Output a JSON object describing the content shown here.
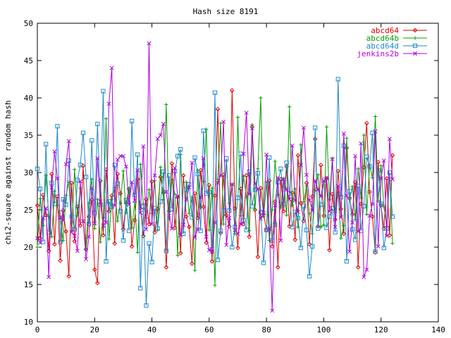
{
  "chart_data": {
    "type": "line",
    "title": "Hash size 8191",
    "xlabel": "",
    "ylabel": "chi2-square against random hash",
    "xlim": [
      0,
      140
    ],
    "ylim": [
      10,
      50
    ],
    "xticks": [
      0,
      20,
      40,
      60,
      80,
      100,
      120,
      140
    ],
    "yticks": [
      10,
      15,
      20,
      25,
      30,
      35,
      40,
      45,
      50
    ],
    "grid": false,
    "legend_position": "top-right",
    "x": [
      0,
      1,
      2,
      3,
      4,
      5,
      6,
      7,
      8,
      9,
      10,
      11,
      12,
      13,
      14,
      15,
      16,
      17,
      18,
      19,
      20,
      21,
      22,
      23,
      24,
      25,
      26,
      27,
      28,
      29,
      30,
      31,
      32,
      33,
      34,
      35,
      36,
      37,
      38,
      39,
      40,
      41,
      42,
      43,
      44,
      45,
      46,
      47,
      48,
      49,
      50,
      51,
      52,
      53,
      54,
      55,
      56,
      57,
      58,
      59,
      60,
      61,
      62,
      63,
      64,
      65,
      66,
      67,
      68,
      69,
      70,
      71,
      72,
      73,
      74,
      75,
      76,
      77,
      78,
      79,
      80,
      81,
      82,
      83,
      84,
      85,
      86,
      87,
      88,
      89,
      90,
      91,
      92,
      93,
      94,
      95,
      96,
      97,
      98,
      99,
      100,
      101,
      102,
      103,
      104,
      105,
      106,
      107,
      108,
      109,
      110,
      111,
      112,
      113,
      114,
      115,
      116,
      117,
      118,
      119,
      120,
      121,
      122,
      123,
      124
    ],
    "series": [
      {
        "name": "abcd64",
        "color": "#e00000",
        "marker": "diamond",
        "values": [
          25.6,
          21.2,
          27.0,
          24.3,
          19.5,
          29.8,
          20.4,
          26.8,
          18.2,
          24.9,
          22.1,
          16.1,
          28.6,
          20.8,
          25.4,
          22.9,
          30.9,
          19.7,
          24.1,
          26.3,
          17.0,
          15.2,
          28.9,
          21.6,
          30.4,
          24.8,
          26.9,
          20.5,
          29.8,
          27.2,
          22.4,
          25.9,
          27.8,
          20.1,
          23.6,
          29.1,
          25.2,
          21.5,
          26.4,
          23.1,
          28.8,
          22.0,
          25.1,
          29.4,
          27.3,
          17.3,
          24.8,
          31.2,
          22.6,
          26.7,
          19.2,
          29.6,
          24.1,
          22.7,
          17.8,
          27.2,
          23.9,
          30.3,
          25.4,
          20.6,
          28.3,
          18.1,
          26.9,
          38.5,
          21.9,
          29.7,
          24.3,
          22.8,
          41.0,
          25.2,
          19.9,
          27.8,
          23.1,
          29.6,
          21.4,
          36.1,
          25.0,
          18.7,
          27.9,
          24.4,
          22.3,
          28.9,
          20.1,
          26.1,
          17.3,
          29.1,
          24.8,
          30.8,
          22.8,
          27.3,
          21.0,
          32.3,
          25.9,
          23.5,
          28.6,
          20.4,
          26.8,
          34.5,
          22.8,
          31.0,
          24.2,
          29.2,
          19.6,
          27.1,
          23.7,
          30.2,
          25.1,
          21.8,
          33.3,
          26.6,
          24.4,
          28.7,
          17.3,
          25.8,
          30.7,
          36.6,
          27.4,
          24.1,
          19.3,
          31.4,
          25.6,
          22.5,
          29.2,
          21.6,
          32.3
        ]
      },
      {
        "name": "abcd64b",
        "color": "#00a000",
        "marker": "plus",
        "values": [
          20.0,
          26.5,
          22.9,
          29.6,
          24.1,
          21.4,
          27.5,
          25.6,
          23.8,
          20.9,
          26.9,
          28.7,
          22.2,
          30.4,
          24.2,
          27.9,
          23.3,
          19.8,
          25.9,
          29.1,
          22.5,
          26.4,
          20.7,
          24.0,
          37.2,
          21.1,
          26.4,
          28.0,
          23.5,
          25.9,
          30.2,
          24.6,
          27.8,
          22.6,
          26.0,
          19.3,
          31.1,
          25.8,
          23.9,
          27.7,
          24.5,
          28.9,
          22.3,
          30.7,
          26.4,
          39.1,
          23.8,
          29.0,
          27.1,
          18.9,
          32.4,
          22.0,
          28.7,
          24.5,
          26.7,
          16.9,
          30.3,
          25.3,
          28.8,
          35.8,
          22.3,
          27.9,
          14.9,
          29.1,
          36.6,
          23.1,
          31.5,
          25.9,
          28.4,
          21.8,
          37.4,
          24.2,
          29.5,
          26.7,
          22.2,
          36.4,
          25.1,
          30.5,
          40.0,
          24.1,
          28.7,
          20.9,
          25.0,
          31.5,
          27.0,
          25.3,
          29.2,
          24.3,
          38.8,
          25.6,
          27.8,
          22.7,
          33.7,
          26.1,
          28.2,
          24.5,
          21.8,
          27.6,
          29.7,
          22.7,
          23.0,
          36.1,
          26.4,
          31.9,
          24.7,
          27.3,
          21.2,
          22.9,
          34.6,
          26.4,
          28.1,
          23.7,
          30.5,
          26.6,
          35.0,
          24.4,
          31.0,
          29.3,
          37.5,
          26.2,
          30.9,
          25.4,
          22.8,
          29.8,
          20.5
        ]
      },
      {
        "name": "abcd64d",
        "color": "#1e88c8",
        "marker": "square",
        "values": [
          30.5,
          27.8,
          20.7,
          33.8,
          22.0,
          28.6,
          25.8,
          36.2,
          20.7,
          26.4,
          25.7,
          31.6,
          24.1,
          22.4,
          29.0,
          31.0,
          35.3,
          29.4,
          23.1,
          34.3,
          24.6,
          36.5,
          25.7,
          40.9,
          18.1,
          26.1,
          25.4,
          31.0,
          28.5,
          24.8,
          20.9,
          26.3,
          22.2,
          36.9,
          27.0,
          32.4,
          14.5,
          25.4,
          12.2,
          20.5,
          18.0,
          25.2,
          22.5,
          26.1,
          30.1,
          19.5,
          29.6,
          25.1,
          30.2,
          32.2,
          33.1,
          21.8,
          27.7,
          28.4,
          24.0,
          32.0,
          29.8,
          22.2,
          35.6,
          27.2,
          27.4,
          19.7,
          40.7,
          18.3,
          22.2,
          24.9,
          31.9,
          24.9,
          20.0,
          22.7,
          26.6,
          32.5,
          23.6,
          22.3,
          30.1,
          25.5,
          27.7,
          29.9,
          24.7,
          17.9,
          22.3,
          32.0,
          20.9,
          23.0,
          28.7,
          30.5,
          25.8,
          31.3,
          27.2,
          22.7,
          24.7,
          23.9,
          19.9,
          25.5,
          22.3,
          16.1,
          20.1,
          36.0,
          22.5,
          25.7,
          29.0,
          22.6,
          24.1,
          25.2,
          22.0,
          42.5,
          26.7,
          33.6,
          18.1,
          27.5,
          22.4,
          21.0,
          28.2,
          22.2,
          25.5,
          32.1,
          30.8,
          35.3,
          19.4,
          30.3,
          25.8,
          19.9,
          22.5,
          30.0,
          24.1
        ]
      },
      {
        "name": "jenkins2b",
        "color": "#b000e0",
        "marker": "cross",
        "values": [
          21.2,
          20.6,
          23.9,
          25.2,
          16.0,
          28.0,
          32.8,
          29.2,
          24.0,
          23.6,
          31.1,
          34.2,
          22.0,
          21.5,
          19.5,
          28.8,
          23.5,
          18.4,
          21.4,
          27.9,
          23.2,
          31.9,
          26.1,
          22.9,
          23.3,
          39.2,
          44.0,
          25.6,
          31.7,
          32.2,
          32.2,
          30.8,
          25.7,
          28.7,
          26.3,
          30.3,
          24.6,
          33.5,
          22.4,
          47.3,
          23.1,
          29.6,
          34.5,
          35.0,
          36.5,
          27.4,
          24.2,
          22.5,
          30.6,
          26.8,
          21.6,
          23.0,
          26.4,
          28.0,
          31.3,
          21.3,
          22.4,
          26.7,
          31.9,
          21.4,
          19.6,
          19.4,
          23.3,
          28.6,
          29.6,
          36.8,
          20.3,
          23.9,
          28.4,
          22.3,
          21.8,
          23.1,
          32.5,
          38.0,
          27.1,
          35.9,
          28.5,
          27.8,
          23.8,
          24.6,
          32.4,
          22.5,
          11.5,
          25.6,
          29.3,
          20.9,
          29.1,
          27.7,
          26.4,
          33.6,
          26.3,
          24.7,
          31.0,
          36.0,
          29.7,
          26.3,
          24.9,
          28.9,
          27.7,
          26.8,
          28.9,
          29.3,
          24.8,
          31.8,
          22.7,
          28.2,
          24.0,
          35.2,
          26.9,
          19.4,
          23.3,
          32.2,
          22.1,
          33.9,
          16.0,
          17.0,
          24.2,
          25.8,
          35.5,
          20.1,
          29.2,
          31.6,
          21.5,
          34.5,
          29.1
        ]
      }
    ]
  }
}
